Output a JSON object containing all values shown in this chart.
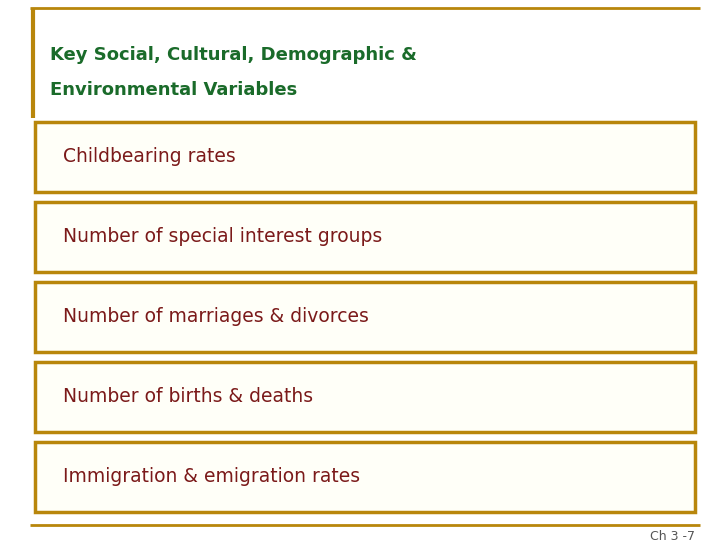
{
  "title_line1": "Key Social, Cultural, Demographic &",
  "title_line2": "Environmental Variables",
  "title_color": "#1a6b2a",
  "items": [
    "Childbearing rates",
    "Number of special interest groups",
    "Number of marriages & divorces",
    "Number of births & deaths",
    "Immigration & emigration rates"
  ],
  "item_text_color": "#7b1a1a",
  "box_border_color": "#b8860b",
  "box_fill_color": "#fffff8",
  "background_color": "#ffffff",
  "border_line_color": "#b8860b",
  "footnote": "Ch 3 -7",
  "footnote_color": "#555555",
  "title_fontsize": 13.0,
  "item_fontsize": 13.5
}
